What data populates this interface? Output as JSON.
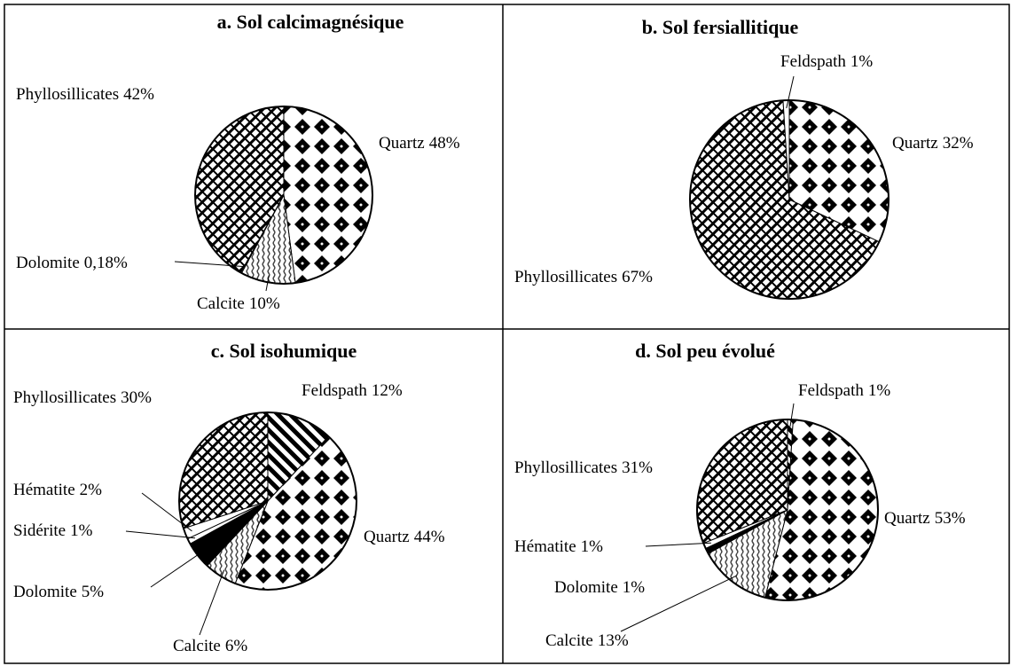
{
  "chart_data": [
    {
      "type": "pie",
      "title": "a. Sol calcimagnésique",
      "categories": [
        "Quartz",
        "Calcite",
        "Dolomite",
        "Phyllosillicates"
      ],
      "values": [
        48,
        10,
        0.18,
        42
      ],
      "value_labels": [
        "48%",
        "10%",
        "0,18%",
        "42%"
      ],
      "fills": [
        "diamonds",
        "waves",
        "white",
        "weave"
      ]
    },
    {
      "type": "pie",
      "title": "b. Sol fersiallitique",
      "categories": [
        "Quartz",
        "Phyllosillicates",
        "Feldspath"
      ],
      "values": [
        32,
        67,
        1
      ],
      "value_labels": [
        "32%",
        "67%",
        "1%"
      ],
      "fills": [
        "diamonds",
        "weave",
        "white"
      ]
    },
    {
      "type": "pie",
      "title": "c. Sol isohumique",
      "categories": [
        "Feldspath",
        "Quartz",
        "Calcite",
        "Dolomite",
        "Sidérite",
        "Hématite",
        "Phyllosillicates"
      ],
      "values": [
        12,
        44,
        6,
        5,
        1,
        2,
        30
      ],
      "value_labels": [
        "12%",
        "44%",
        "6%",
        "5%",
        "1%",
        "2%",
        "30%"
      ],
      "fills": [
        "stripes",
        "diamonds",
        "waves",
        "black",
        "white",
        "white",
        "weave"
      ]
    },
    {
      "type": "pie",
      "title": "d. Sol peu évolué",
      "categories": [
        "Feldspath",
        "Quartz",
        "Calcite",
        "Dolomite",
        "Hématite",
        "Phyllosillicates"
      ],
      "values": [
        1,
        53,
        13,
        1,
        1,
        31
      ],
      "value_labels": [
        "1%",
        "53%",
        "13%",
        "1%",
        "1%",
        "31%"
      ],
      "fills": [
        "stripes",
        "diamonds",
        "waves",
        "black",
        "white",
        "weave"
      ]
    }
  ]
}
